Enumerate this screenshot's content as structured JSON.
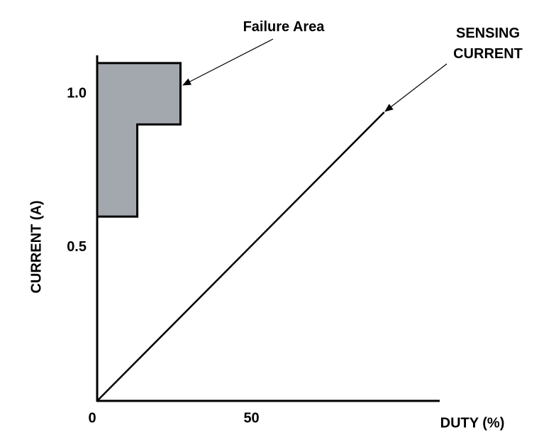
{
  "chart_data": {
    "type": "line",
    "x_label": "DUTY (%)",
    "y_label": "CURRENT (A)",
    "xlim": [
      0,
      111
    ],
    "ylim": [
      0,
      1.125
    ],
    "xticks": [
      0,
      50
    ],
    "yticks": [
      0.5,
      {
        "value": 1,
        "label": "1.0"
      }
    ],
    "series": [
      {
        "name": "SENSING CURRENT",
        "color": "#000000",
        "x": [
          0,
          93
        ],
        "values": [
          0,
          0.94
        ]
      }
    ],
    "regions": [
      {
        "name": "Failure Area",
        "color": "#a3a7ae",
        "x": [
          0,
          27,
          27,
          13,
          13,
          0
        ],
        "y": [
          1.1,
          1.1,
          0.9,
          0.9,
          0.6,
          0.6
        ]
      }
    ]
  }
}
